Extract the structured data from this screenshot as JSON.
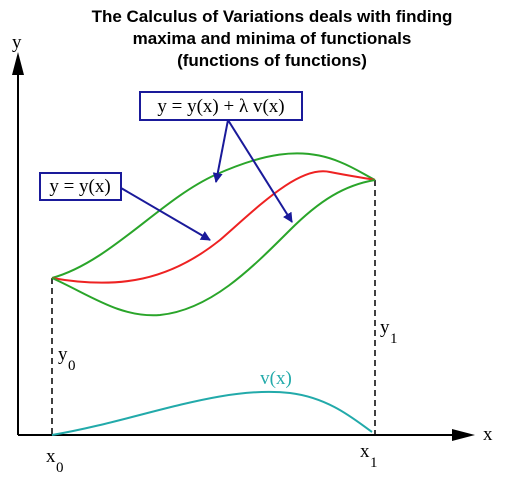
{
  "title": {
    "lines": [
      "The Calculus of Variations deals with finding",
      "maxima and minima of functionals",
      "(functions of functions)"
    ]
  },
  "axes": {
    "y_label": "y",
    "x_label": "x"
  },
  "boxes": {
    "varied": "y = y(x) +  λ v(x)",
    "extremal": "y = y(x)"
  },
  "curve_labels": {
    "variation": "v(x)"
  },
  "endpoints": {
    "y0": {
      "text": "y",
      "subscript": "0"
    },
    "y1": {
      "text": "y",
      "subscript": "1"
    },
    "x0": {
      "text": "x",
      "subscript": "0"
    },
    "x1": {
      "text": "x",
      "subscript": "1"
    }
  }
}
